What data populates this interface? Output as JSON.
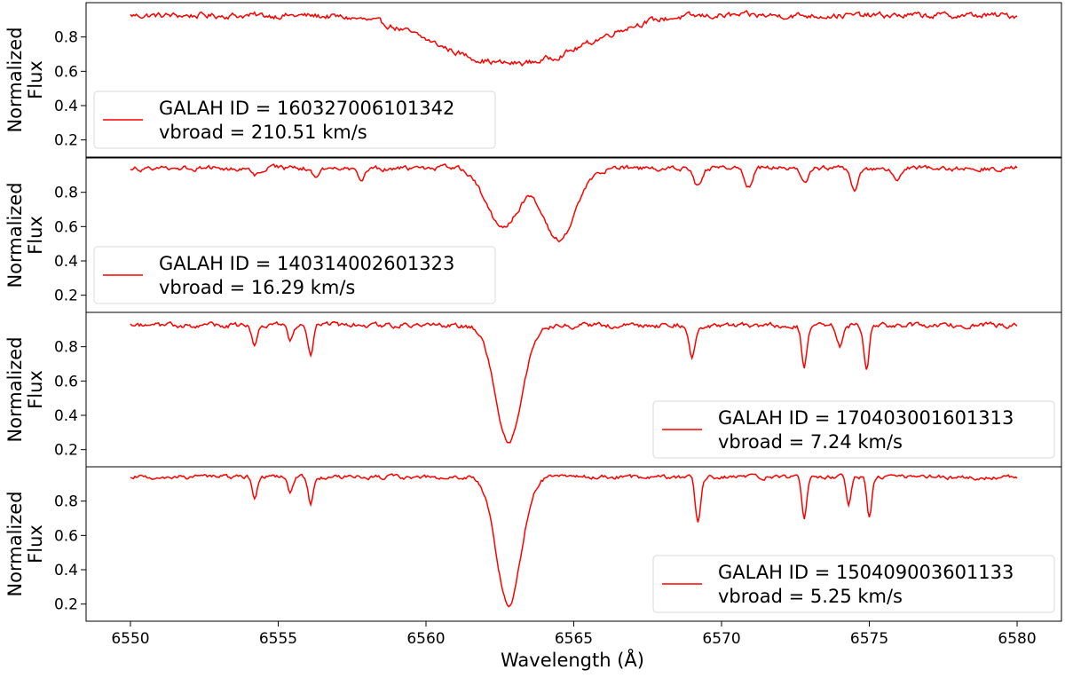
{
  "chart_data": {
    "type": "line",
    "layout": "stacked-panels",
    "shared_x": {
      "label": "Wavelength (Å)",
      "range": [
        6548.5,
        6581.5
      ],
      "ticks": [
        6550,
        6555,
        6560,
        6565,
        6570,
        6575,
        6580
      ],
      "tick_labels": [
        "6550",
        "6555",
        "6560",
        "6565",
        "6570",
        "6575",
        "6580"
      ]
    },
    "y": {
      "label_line1": "Normalized",
      "label_line2": "Flux",
      "range": [
        0.1,
        1.0
      ],
      "ticks": [
        0.2,
        0.4,
        0.6,
        0.8
      ],
      "tick_labels": [
        "0.2",
        "0.4",
        "0.6",
        "0.8"
      ]
    },
    "grid": false,
    "line_color": "#ff0000",
    "panels": [
      {
        "legend_line1": "GALAH ID = 160327006101342",
        "legend_line2": "vbroad = 210.51 km/s",
        "legend_position": "lower-left",
        "continuum": 0.925,
        "noise": 0.014,
        "lines": [
          {
            "center": 6561.5,
            "depth": 0.18,
            "width": 1.8
          },
          {
            "center": 6564.2,
            "depth": 0.19,
            "width": 1.8
          }
        ]
      },
      {
        "legend_line1": "GALAH ID = 140314002601323",
        "legend_line2": "vbroad = 16.29 km/s",
        "legend_position": "lower-left",
        "continuum": 0.94,
        "noise": 0.012,
        "lines": [
          {
            "center": 6557.8,
            "depth": 0.08,
            "width": 0.12
          },
          {
            "center": 6556.3,
            "depth": 0.05,
            "width": 0.12
          },
          {
            "center": 6554.2,
            "depth": 0.05,
            "width": 0.12
          },
          {
            "center": 6562.6,
            "depth": 0.35,
            "width": 0.55
          },
          {
            "center": 6564.5,
            "depth": 0.42,
            "width": 0.55
          },
          {
            "center": 6569.2,
            "depth": 0.11,
            "width": 0.13
          },
          {
            "center": 6570.9,
            "depth": 0.11,
            "width": 0.13
          },
          {
            "center": 6572.8,
            "depth": 0.09,
            "width": 0.12
          },
          {
            "center": 6574.5,
            "depth": 0.12,
            "width": 0.13
          },
          {
            "center": 6575.9,
            "depth": 0.06,
            "width": 0.12
          }
        ]
      },
      {
        "legend_line1": "GALAH ID = 170403001601313",
        "legend_line2": "vbroad = 7.24 km/s",
        "legend_position": "lower-right",
        "continuum": 0.925,
        "noise": 0.012,
        "lines": [
          {
            "center": 6554.2,
            "depth": 0.12,
            "width": 0.09
          },
          {
            "center": 6555.4,
            "depth": 0.08,
            "width": 0.09
          },
          {
            "center": 6556.1,
            "depth": 0.16,
            "width": 0.09
          },
          {
            "center": 6562.8,
            "depth": 0.68,
            "width": 0.45
          },
          {
            "center": 6569.0,
            "depth": 0.18,
            "width": 0.1
          },
          {
            "center": 6572.8,
            "depth": 0.23,
            "width": 0.09
          },
          {
            "center": 6574.0,
            "depth": 0.12,
            "width": 0.09
          },
          {
            "center": 6574.9,
            "depth": 0.26,
            "width": 0.09
          }
        ]
      },
      {
        "legend_line1": "GALAH ID = 150409003601133",
        "legend_line2": "vbroad = 5.25 km/s",
        "legend_position": "lower-right",
        "continuum": 0.94,
        "noise": 0.01,
        "lines": [
          {
            "center": 6554.2,
            "depth": 0.14,
            "width": 0.08
          },
          {
            "center": 6555.4,
            "depth": 0.09,
            "width": 0.08
          },
          {
            "center": 6556.1,
            "depth": 0.16,
            "width": 0.08
          },
          {
            "center": 6562.8,
            "depth": 0.74,
            "width": 0.42
          },
          {
            "center": 6569.2,
            "depth": 0.26,
            "width": 0.09
          },
          {
            "center": 6572.8,
            "depth": 0.24,
            "width": 0.08
          },
          {
            "center": 6574.3,
            "depth": 0.16,
            "width": 0.08
          },
          {
            "center": 6575.0,
            "depth": 0.24,
            "width": 0.08
          }
        ]
      }
    ]
  }
}
